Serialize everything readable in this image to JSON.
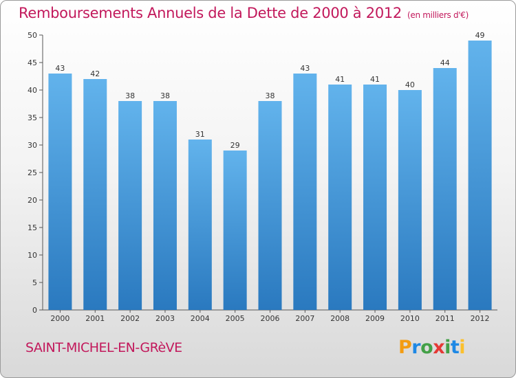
{
  "title": "Remboursements Annuels de la Dette de 2000 à 2012",
  "subtitle": "(en milliers d'€)",
  "commune": "SAINT-MICHEL-EN-GRèVE",
  "logo": {
    "letters": [
      "P",
      "r",
      "o",
      "x",
      "i",
      "t",
      "i"
    ]
  },
  "colors": {
    "title": "#c2185b",
    "bar_top": "#62b3ec",
    "bar_bottom": "#2a79bf",
    "axis": "#555555"
  },
  "chart_data": {
    "type": "bar",
    "categories": [
      "2000",
      "2001",
      "2002",
      "2003",
      "2004",
      "2005",
      "2006",
      "2007",
      "2008",
      "2009",
      "2010",
      "2011",
      "2012"
    ],
    "values": [
      43,
      42,
      38,
      38,
      31,
      29,
      38,
      43,
      41,
      41,
      40,
      44,
      49
    ],
    "ylim": [
      0,
      50
    ],
    "yticks": [
      0,
      5,
      10,
      15,
      20,
      25,
      30,
      35,
      40,
      45,
      50
    ],
    "grid": false,
    "data_labels": true
  }
}
